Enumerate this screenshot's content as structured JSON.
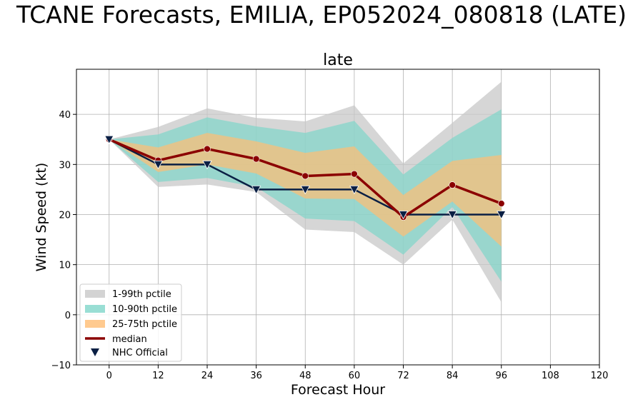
{
  "chart_data": {
    "type": "line",
    "suptitle": "TCANE Forecasts, EMILIA, EP052024_080818 (LATE)",
    "title": "late",
    "xlabel": "Forecast Hour",
    "ylabel": "Wind Speed (kt)",
    "xlim": [
      -8,
      120
    ],
    "ylim": [
      -10,
      49
    ],
    "xticks": [
      0,
      12,
      24,
      36,
      48,
      60,
      72,
      84,
      96,
      108,
      120
    ],
    "yticks": [
      -10,
      0,
      10,
      20,
      30,
      40
    ],
    "grid": true,
    "legend_position": "lower-left",
    "x": [
      0,
      12,
      24,
      36,
      48,
      60,
      72,
      84,
      96
    ],
    "bands": [
      {
        "name": "1-99th pctile",
        "color": "#c8c8c8",
        "lower": [
          35,
          25.5,
          26,
          24.5,
          17,
          16.5,
          10,
          19,
          2.5
        ],
        "upper": [
          35,
          37.5,
          41.2,
          39.3,
          38.6,
          41.8,
          30.2,
          38.3,
          46.5
        ]
      },
      {
        "name": "10-90th pctile",
        "color": "#7fd6c9",
        "lower": [
          35,
          26.5,
          27.3,
          25.5,
          19.2,
          18.7,
          12,
          21.5,
          6.6
        ],
        "upper": [
          35,
          36,
          39.4,
          37.6,
          36.3,
          38.7,
          28,
          35.3,
          41
        ]
      },
      {
        "name": "25-75th pctile",
        "color": "#ffbd73",
        "lower": [
          35,
          28.5,
          30,
          28.2,
          23.2,
          23.1,
          15.6,
          22.6,
          13.6
        ],
        "upper": [
          35,
          33.4,
          36.3,
          34.6,
          32.3,
          33.6,
          23.9,
          30.7,
          31.9
        ]
      }
    ],
    "series": [
      {
        "name": "median",
        "color": "#8b0000",
        "values": [
          35,
          30.8,
          33.1,
          31.1,
          27.7,
          28.1,
          19.5,
          25.9,
          22.2
        ]
      },
      {
        "name": "NHC Official",
        "color": "#0a1f44",
        "values": [
          35,
          30,
          30,
          25,
          25,
          25,
          20,
          20,
          20
        ]
      }
    ]
  }
}
